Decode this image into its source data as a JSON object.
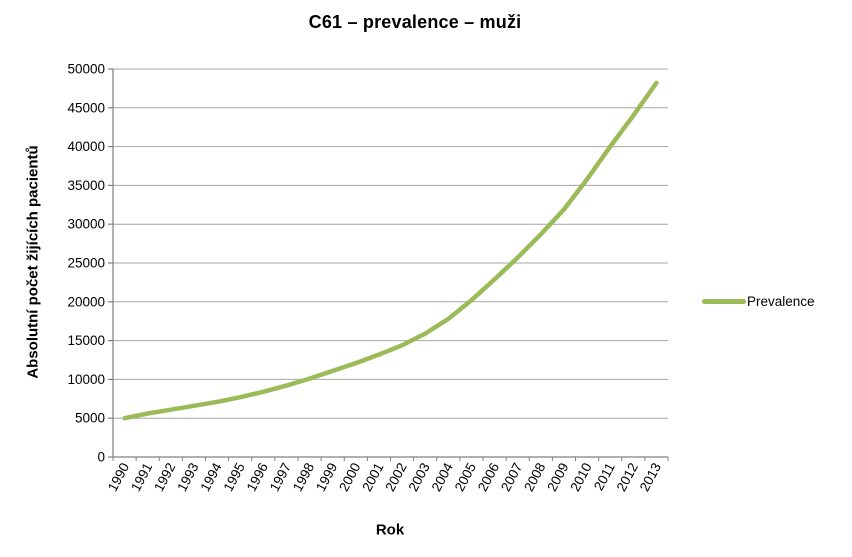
{
  "title": "C61 – prevalence – muži",
  "legend": {
    "label": "Prevalence"
  },
  "colors": {
    "series": "#9BBB59",
    "gridline": "#A6A6A6",
    "axis": "#808080",
    "text": "#000000",
    "background": "#FFFFFF"
  },
  "chart_data": {
    "type": "line",
    "title": "C61 – prevalence – muži",
    "xlabel": "Rok",
    "ylabel": "Absolutní počet žijících pacientů",
    "categories": [
      "1990",
      "1991",
      "1992",
      "1993",
      "1994",
      "1995",
      "1996",
      "1997",
      "1998",
      "1999",
      "2000",
      "2001",
      "2002",
      "2003",
      "2004",
      "2005",
      "2006",
      "2007",
      "2008",
      "2009",
      "2010",
      "2011",
      "2012",
      "2013"
    ],
    "series": [
      {
        "name": "Prevalence",
        "color": "#9BBB59",
        "values": [
          5000,
          5600,
          6100,
          6600,
          7100,
          7700,
          8400,
          9200,
          10100,
          11100,
          12100,
          13200,
          14400,
          15900,
          17800,
          20200,
          22900,
          25700,
          28700,
          31900,
          35800,
          40000,
          44000,
          48200
        ]
      }
    ],
    "ylim": [
      0,
      50000
    ],
    "ytick_step": 5000,
    "yticks": [
      "0",
      "5000",
      "10000",
      "15000",
      "20000",
      "25000",
      "30000",
      "35000",
      "40000",
      "45000",
      "50000"
    ],
    "grid": "horizontal",
    "legend_position": "right"
  }
}
